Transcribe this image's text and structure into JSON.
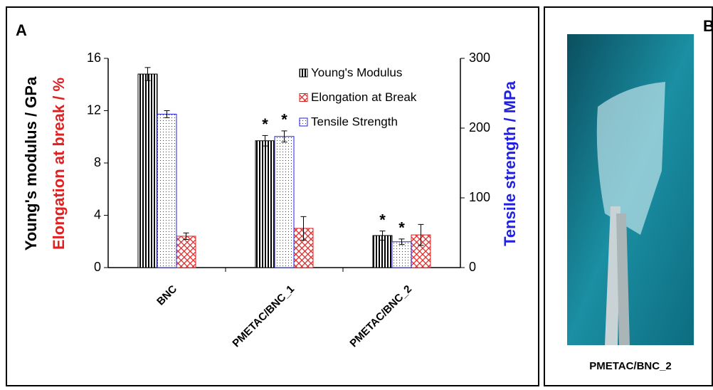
{
  "chart_data": {
    "type": "bar",
    "panel_labels": [
      "A",
      "B"
    ],
    "y_label": "Young's modulus / GPa",
    "y_label_2": "Elongation at break / %",
    "y2_label": "Tensile strength / MPa",
    "categories": [
      "BNC",
      "PMETAC/BNC_1",
      "PMETAC/BNC_2"
    ],
    "series": [
      {
        "name": "Young's Modulus",
        "color": "#000000",
        "axis": "y",
        "values": [
          14.8,
          9.7,
          2.45
        ],
        "errors": [
          0.5,
          0.4,
          0.35
        ],
        "significance": [
          null,
          "*",
          "*"
        ]
      },
      {
        "name": "Elongation at Break",
        "color": "#e02020",
        "axis": "y",
        "values": [
          2.4,
          3.0,
          2.5
        ],
        "errors": [
          0.25,
          0.9,
          0.8
        ],
        "significance": [
          null,
          null,
          null
        ]
      },
      {
        "name": "Tensile Strength",
        "color": "#2020e0",
        "axis": "y2",
        "values": [
          220,
          188,
          37
        ],
        "errors": [
          5,
          8,
          4
        ],
        "significance": [
          null,
          "*",
          "*"
        ]
      }
    ],
    "ylim": [
      0,
      16
    ],
    "yticks": [
      0,
      4,
      8,
      12,
      16
    ],
    "y2lim": [
      0,
      300
    ],
    "y2ticks": [
      0,
      100,
      200,
      300
    ],
    "photo_caption": "PMETAC/BNC_2"
  }
}
